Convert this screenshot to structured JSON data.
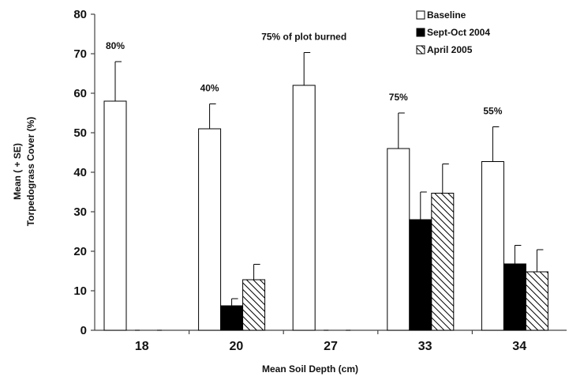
{
  "chart_data": {
    "type": "bar",
    "title": "",
    "xlabel": "Mean Soil Depth (cm)",
    "ylabel_lines": [
      "Mean ( + SE)",
      "Torpedograss Cover (%)"
    ],
    "ylim": [
      0,
      80
    ],
    "yticks": [
      0,
      10,
      20,
      30,
      40,
      50,
      60,
      70,
      80
    ],
    "categories": [
      "18",
      "20",
      "27",
      "33",
      "34"
    ],
    "series": [
      {
        "name": "Baseline",
        "pattern": "open",
        "values": [
          58,
          51,
          62,
          46,
          42.7
        ],
        "se": [
          10,
          6.3,
          8.3,
          9,
          8.8
        ]
      },
      {
        "name": "Sept-Oct 2004",
        "pattern": "solid",
        "values": [
          0,
          6.2,
          0,
          28,
          16.8
        ],
        "se": [
          0,
          1.8,
          0,
          7,
          4.7
        ]
      },
      {
        "name": "April 2005",
        "pattern": "hatched",
        "values": [
          0,
          12.8,
          0,
          34.7,
          14.8
        ],
        "se": [
          0,
          3.9,
          0,
          7.4,
          5.6
        ]
      }
    ],
    "annotations": [
      "80%",
      "40%",
      "75% of plot burned",
      "75%",
      "55%"
    ],
    "legend_position": "top-right",
    "grid": false
  },
  "colors": {
    "open": "#ffffff",
    "solid": "#000000",
    "hatch_stroke": "#000000",
    "axis": "#444444"
  }
}
